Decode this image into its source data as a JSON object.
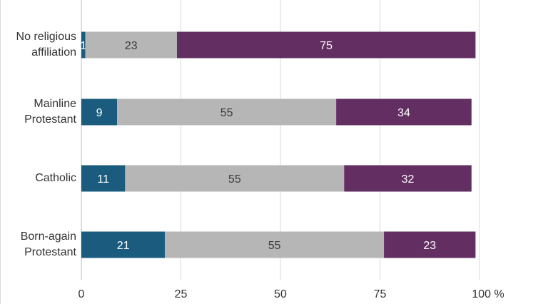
{
  "chart_data": {
    "type": "bar",
    "orientation": "horizontal",
    "stacked": true,
    "categories": [
      [
        "No religious",
        "affiliation"
      ],
      [
        "Mainline",
        "Protestant"
      ],
      [
        "Catholic"
      ],
      [
        "Born-again",
        "Protestant"
      ]
    ],
    "series": [
      {
        "values": [
          1,
          9,
          11,
          21
        ],
        "color": "#1b5c7e",
        "label_color": "#ffffff"
      },
      {
        "values": [
          23,
          55,
          55,
          55
        ],
        "color": "#b6b6b6",
        "label_color": "#3a3a3a"
      },
      {
        "values": [
          75,
          34,
          32,
          23
        ],
        "color": "#632e62",
        "label_color": "#ffffff"
      }
    ],
    "x_ticks": [
      {
        "value": 0,
        "label": "0"
      },
      {
        "value": 25,
        "label": "25"
      },
      {
        "value": 50,
        "label": "50"
      },
      {
        "value": 75,
        "label": "75"
      },
      {
        "value": 100,
        "label": "100 %"
      }
    ],
    "xlim": [
      0,
      100
    ],
    "grid": true,
    "legend": "none"
  }
}
